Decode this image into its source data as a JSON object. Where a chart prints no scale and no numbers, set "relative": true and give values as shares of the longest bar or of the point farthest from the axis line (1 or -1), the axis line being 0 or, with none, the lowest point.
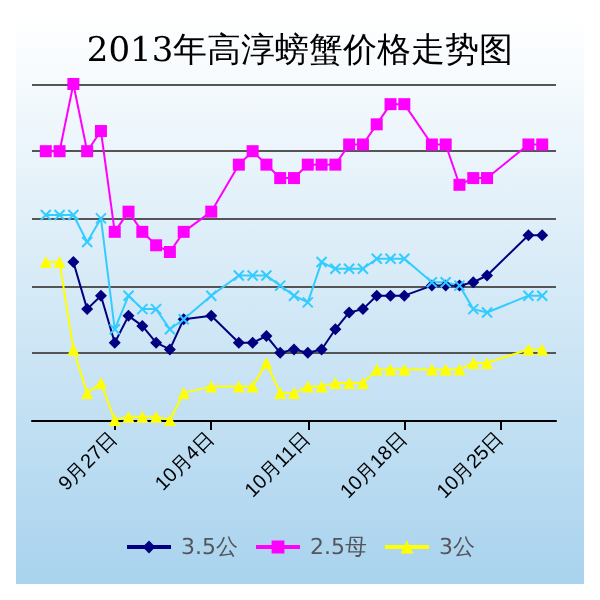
{
  "chart_data": {
    "type": "line",
    "title": "2013年高淳螃蟹价格走势图",
    "relative": true,
    "grid": "y",
    "legend": "bottom",
    "x": [
      "--09-22",
      "--09-23",
      "--09-24",
      "--09-25",
      "--09-26",
      "--09-27",
      "--09-28",
      "--09-29",
      "--09-30",
      "--10-01",
      "--10-02",
      "--10-04",
      "--10-06",
      "--10-07",
      "--10-08",
      "--10-09",
      "--10-10",
      "--10-11",
      "--10-12",
      "--10-13",
      "--10-14",
      "--10-15",
      "--10-16",
      "--10-17",
      "--10-18",
      "--10-20",
      "--10-21",
      "--10-22",
      "--10-23",
      "--10-24",
      "--10-27",
      "--10-28"
    ],
    "xlim": [
      "--09-21",
      "--10-29"
    ],
    "xticks": [
      {
        "value": "--09-27",
        "label": "9月27日"
      },
      {
        "value": "--10-04",
        "label": "10月4日"
      },
      {
        "value": "--10-11",
        "label": "10月11日"
      },
      {
        "value": "--10-18",
        "label": "10月18日"
      },
      {
        "value": "--10-25",
        "label": "10月25日"
      }
    ],
    "series": [
      {
        "name": "3.5公",
        "color": "#000080",
        "marker": "diamond",
        "values": [
          null,
          null,
          0.47,
          0.33,
          0.37,
          0.23,
          0.31,
          0.28,
          0.23,
          0.21,
          0.3,
          0.31,
          0.23,
          0.23,
          0.25,
          0.2,
          0.21,
          0.2,
          0.21,
          0.27,
          0.32,
          0.33,
          0.37,
          0.37,
          0.37,
          0.4,
          0.4,
          0.4,
          0.41,
          0.43,
          0.55,
          0.55
        ]
      },
      {
        "name": "2.5母",
        "color": "#ff00ff",
        "marker": "square",
        "values": [
          0.8,
          0.8,
          1,
          0.8,
          0.86,
          0.56,
          0.62,
          0.56,
          0.52,
          0.5,
          0.56,
          0.62,
          0.76,
          0.8,
          0.76,
          0.72,
          0.72,
          0.76,
          0.76,
          0.76,
          0.82,
          0.82,
          0.88,
          0.94,
          0.94,
          0.82,
          0.82,
          0.7,
          0.72,
          0.72,
          0.82,
          0.82
        ]
      },
      {
        "name": "3公",
        "color": "#ffff00",
        "marker": "triangle",
        "values": [
          0.47,
          0.47,
          0.21,
          0.08,
          0.11,
          0,
          0.01,
          0.01,
          0.01,
          0,
          0.08,
          0.1,
          0.1,
          0.1,
          0.17,
          0.08,
          0.08,
          0.1,
          0.1,
          0.11,
          0.11,
          0.11,
          0.15,
          0.15,
          0.15,
          0.15,
          0.15,
          0.15,
          0.17,
          0.17,
          0.21,
          0.21
        ]
      },
      {
        "color": "#33ccff",
        "marker": "cross",
        "values": [
          0.61,
          0.61,
          0.61,
          0.53,
          0.6,
          0.27,
          0.37,
          0.33,
          0.33,
          0.27,
          0.3,
          0.37,
          0.43,
          0.43,
          0.43,
          0.4,
          0.37,
          0.35,
          0.47,
          0.45,
          0.45,
          0.45,
          0.48,
          0.48,
          0.48,
          0.41,
          0.41,
          0.4,
          0.33,
          0.32,
          0.37,
          0.37
        ]
      }
    ]
  }
}
